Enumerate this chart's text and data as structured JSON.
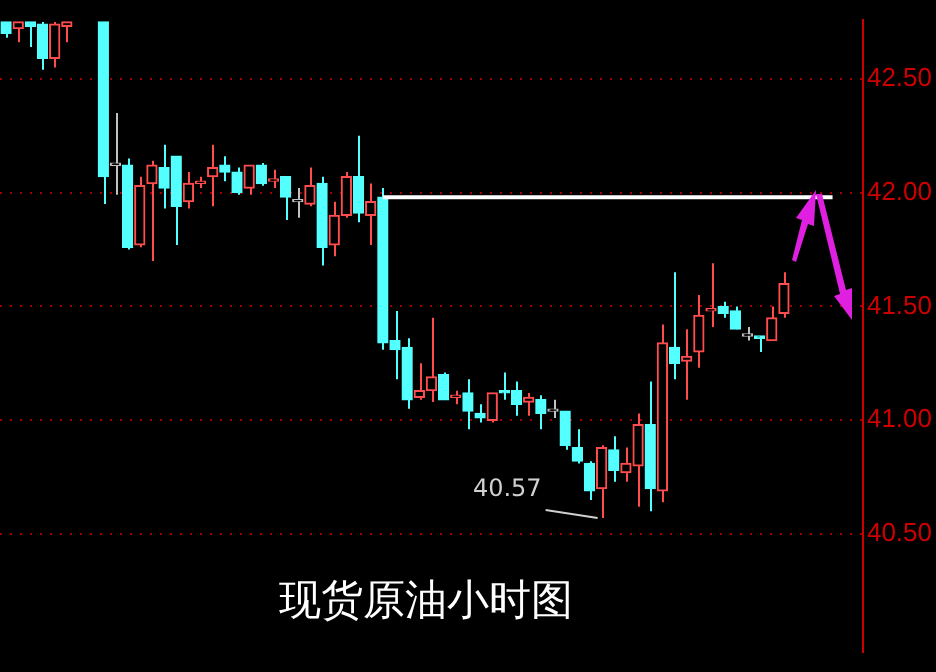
{
  "chart_data": {
    "type": "candlestick",
    "title": "现货原油小时图",
    "categories": [
      null,
      null,
      null,
      null,
      null,
      null,
      null,
      null,
      null,
      null,
      null,
      null,
      null,
      null,
      null,
      null,
      null,
      null,
      null,
      null,
      null,
      null,
      null,
      null,
      null,
      null,
      null,
      null,
      null,
      null,
      null,
      null,
      null,
      null,
      null,
      null,
      null,
      null,
      null,
      null,
      null,
      null,
      null,
      null,
      null,
      null,
      null,
      null,
      null,
      null,
      null,
      null,
      null,
      null,
      null,
      null,
      null,
      null,
      null,
      null,
      null,
      null,
      null,
      null,
      null,
      null,
      null,
      null,
      null,
      null,
      null
    ],
    "ohlc": [
      [
        42.75,
        42.75,
        42.68,
        42.7
      ],
      [
        42.72,
        42.75,
        42.66,
        42.75
      ],
      [
        42.75,
        42.75,
        42.64,
        42.73
      ],
      [
        42.74,
        42.75,
        42.54,
        42.59
      ],
      [
        42.59,
        42.75,
        42.55,
        42.74
      ],
      [
        42.73,
        42.75,
        42.66,
        42.75
      ],
      null,
      null,
      [
        42.75,
        42.75,
        41.95,
        42.07
      ],
      [
        42.12,
        42.35,
        41.99,
        42.12
      ],
      [
        42.12,
        42.15,
        41.75,
        41.76
      ],
      [
        41.77,
        42.07,
        41.76,
        42.03
      ],
      [
        42.04,
        42.14,
        41.7,
        42.12
      ],
      [
        42.11,
        42.21,
        41.93,
        42.02
      ],
      [
        42.16,
        42.16,
        41.77,
        41.94
      ],
      [
        41.96,
        42.09,
        41.93,
        42.04
      ],
      [
        42.04,
        42.07,
        42.02,
        42.05
      ],
      [
        42.07,
        42.21,
        41.94,
        42.11
      ],
      [
        42.12,
        42.16,
        42.05,
        42.09
      ],
      [
        42.09,
        42.11,
        41.99,
        42.0
      ],
      [
        42.02,
        42.12,
        41.99,
        42.12
      ],
      [
        42.12,
        42.13,
        42.03,
        42.04
      ],
      [
        42.05,
        42.1,
        42.02,
        42.06
      ],
      [
        42.07,
        42.07,
        41.88,
        41.98
      ],
      [
        41.96,
        42.02,
        41.89,
        41.96
      ],
      [
        41.95,
        42.11,
        41.94,
        42.03
      ],
      [
        42.04,
        42.07,
        41.68,
        41.76
      ],
      [
        41.77,
        41.96,
        41.72,
        41.9
      ],
      [
        41.9,
        42.09,
        41.89,
        42.07
      ],
      [
        42.07,
        42.25,
        41.87,
        41.91
      ],
      [
        41.9,
        42.04,
        41.77,
        41.96
      ],
      [
        41.98,
        42.02,
        41.31,
        41.34
      ],
      [
        41.35,
        41.48,
        41.18,
        41.31
      ],
      [
        41.32,
        41.36,
        41.05,
        41.09
      ],
      [
        41.1,
        41.25,
        41.09,
        41.13
      ],
      [
        41.13,
        41.45,
        41.08,
        41.19
      ],
      [
        41.2,
        41.21,
        41.09,
        41.09
      ],
      [
        41.1,
        41.13,
        41.07,
        41.11
      ],
      [
        41.12,
        41.18,
        40.96,
        41.04
      ],
      [
        41.03,
        41.07,
        40.99,
        41.01
      ],
      [
        41.0,
        41.12,
        40.99,
        41.12
      ],
      [
        41.13,
        41.21,
        41.09,
        41.12
      ],
      [
        41.13,
        41.17,
        41.02,
        41.07
      ],
      [
        41.08,
        41.12,
        41.02,
        41.1
      ],
      [
        41.09,
        41.11,
        40.96,
        41.03
      ],
      [
        41.04,
        41.09,
        41.01,
        41.04
      ],
      [
        41.04,
        41.04,
        40.87,
        40.89
      ],
      [
        40.88,
        40.96,
        40.81,
        40.82
      ],
      [
        40.81,
        40.82,
        40.65,
        40.69
      ],
      [
        40.7,
        40.89,
        40.57,
        40.88
      ],
      [
        40.87,
        40.93,
        40.73,
        40.78
      ],
      [
        40.77,
        40.88,
        40.73,
        40.81
      ],
      [
        40.8,
        41.03,
        40.62,
        40.98
      ],
      [
        40.98,
        41.17,
        40.6,
        40.7
      ],
      [
        40.69,
        41.42,
        40.64,
        41.34
      ],
      [
        41.32,
        41.65,
        41.18,
        41.25
      ],
      [
        41.26,
        41.4,
        41.09,
        41.28
      ],
      [
        41.3,
        41.55,
        41.23,
        41.46
      ],
      [
        41.48,
        41.69,
        41.41,
        41.49
      ],
      [
        41.5,
        41.52,
        41.45,
        41.47
      ],
      [
        41.48,
        41.5,
        41.4,
        41.4
      ],
      [
        41.37,
        41.41,
        41.35,
        41.37
      ],
      [
        41.37,
        41.37,
        41.3,
        41.36
      ],
      [
        41.35,
        41.5,
        41.35,
        41.45
      ],
      [
        41.47,
        41.65,
        41.45,
        41.6
      ],
      null,
      null,
      null,
      null,
      null,
      null
    ],
    "colors": [
      "#54ffff",
      "#ff4c4c",
      "#54ffff",
      "#54ffff",
      "#ff4c4c",
      "#ff4c4c",
      null,
      null,
      "#54ffff",
      "#c0c0c0",
      "#54ffff",
      "#ff4c4c",
      "#ff4c4c",
      "#54ffff",
      "#54ffff",
      "#ff4c4c",
      "#ff4c4c",
      "#ff4c4c",
      "#54ffff",
      "#54ffff",
      "#ff4c4c",
      "#54ffff",
      "#ff4c4c",
      "#54ffff",
      "#c0c0c0",
      "#ff4c4c",
      "#54ffff",
      "#ff4c4c",
      "#ff4c4c",
      "#54ffff",
      "#ff4c4c",
      "#54ffff",
      "#54ffff",
      "#54ffff",
      "#ff4c4c",
      "#ff4c4c",
      "#54ffff",
      "#ff4c4c",
      "#54ffff",
      "#54ffff",
      "#ff4c4c",
      "#54ffff",
      "#54ffff",
      "#ff4c4c",
      "#54ffff",
      "#c0c0c0",
      "#54ffff",
      "#54ffff",
      "#54ffff",
      "#ff4c4c",
      "#54ffff",
      "#ff4c4c",
      "#ff4c4c",
      "#54ffff",
      "#ff4c4c",
      "#54ffff",
      "#ff4c4c",
      "#ff4c4c",
      "#ff4c4c",
      "#54ffff",
      "#54ffff",
      "#c0c0c0",
      "#54ffff",
      "#ff4c4c",
      "#ff4c4c",
      null,
      null,
      null,
      null,
      null,
      null
    ],
    "series": [
      {
        "type": "line",
        "color": "#ffffff",
        "values": [
          null,
          null,
          null,
          null,
          null,
          null,
          null,
          null,
          null,
          null,
          null,
          null,
          null,
          null,
          null,
          null,
          null,
          null,
          null,
          null,
          null,
          null,
          null,
          null,
          null,
          null,
          null,
          null,
          null,
          null,
          null,
          41.98,
          41.98,
          41.98,
          41.98,
          41.98,
          41.98,
          41.98,
          41.98,
          41.98,
          41.98,
          41.98,
          41.98,
          41.98,
          41.98,
          41.98,
          41.98,
          41.98,
          41.98,
          41.98,
          41.98,
          41.98,
          41.98,
          41.98,
          41.98,
          41.98,
          41.98,
          41.98,
          41.98,
          41.98,
          41.98,
          41.98,
          41.98,
          41.98,
          41.98,
          41.98,
          41.98,
          41.98,
          41.98,
          null,
          null
        ]
      }
    ],
    "ylim": [
      39.98,
      42.76
    ],
    "yticks": [
      {
        "value": 40.5,
        "label": "40.50"
      },
      {
        "value": 41,
        "label": "41.00"
      },
      {
        "value": 41.5,
        "label": "41.50"
      },
      {
        "value": 42,
        "label": "42.00"
      },
      {
        "value": 42.5,
        "label": "42.50"
      }
    ],
    "grid": "y",
    "tick_labels": "y",
    "annotations": [
      "40.57"
    ]
  }
}
